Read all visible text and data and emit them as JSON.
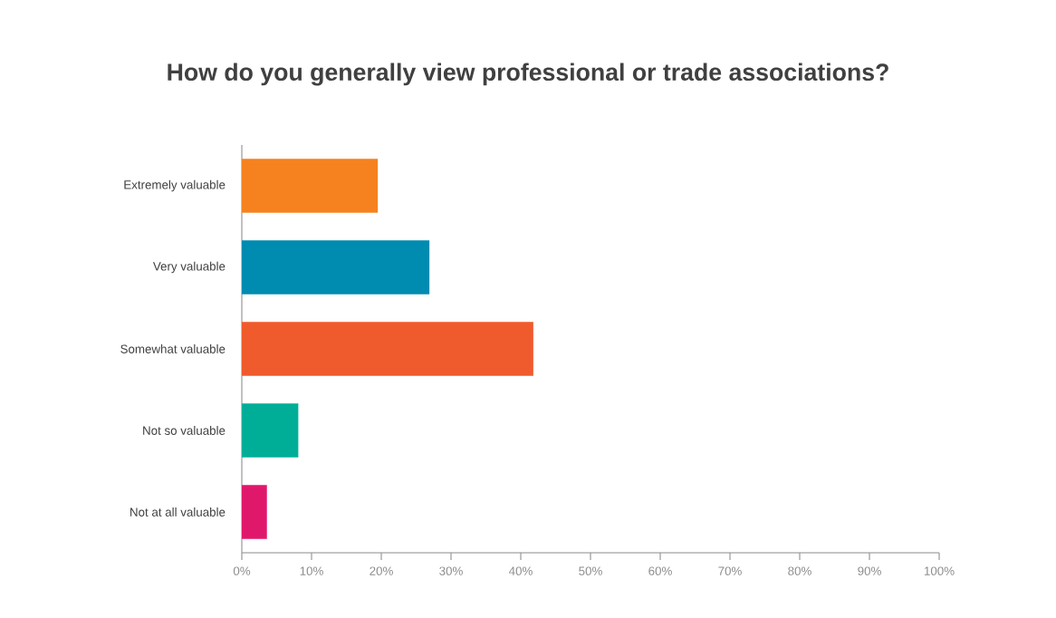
{
  "chart_data": {
    "type": "bar",
    "orientation": "horizontal",
    "title": "How do you generally view professional or trade associations?",
    "categories": [
      "Extremely valuable",
      "Very valuable",
      "Somewhat valuable",
      "Not so valuable",
      "Not at all valuable"
    ],
    "values": [
      19.5,
      26.9,
      41.8,
      8.1,
      3.6
    ],
    "colors": [
      "#f5821f",
      "#008bb0",
      "#ef5b2d",
      "#00ae98",
      "#e0186b"
    ],
    "xlim": [
      0,
      100
    ],
    "xticks": [
      {
        "value": 0,
        "label": "0%"
      },
      {
        "value": 10,
        "label": "10%"
      },
      {
        "value": 20,
        "label": "20%"
      },
      {
        "value": 30,
        "label": "30%"
      },
      {
        "value": 40,
        "label": "40%"
      },
      {
        "value": 50,
        "label": "50%"
      },
      {
        "value": 60,
        "label": "60%"
      },
      {
        "value": 70,
        "label": "70%"
      },
      {
        "value": 80,
        "label": "80%"
      },
      {
        "value": 90,
        "label": "90%"
      },
      {
        "value": 100,
        "label": "100%"
      }
    ]
  }
}
